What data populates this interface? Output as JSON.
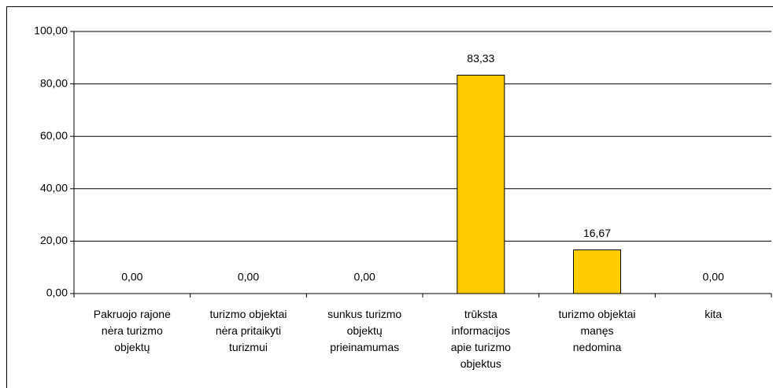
{
  "chart_data": {
    "type": "bar",
    "categories": [
      "Pakruojo rajone\nnėra turizmo\nobjektų",
      "turizmo objektai\nnėra pritaikyti\nturizmui",
      "sunkus turizmo\nobjektų\nprieinamumas",
      "trūksta\ninformacijos\napie turizmo\nobjektus",
      "turizmo objektai\nmanęs\nnedomina",
      "kita"
    ],
    "values": [
      0,
      0,
      0,
      83.33,
      16.67,
      0
    ],
    "value_labels": [
      "0,00",
      "0,00",
      "0,00",
      "83,33",
      "16,67",
      "0,00"
    ],
    "color": "#ffcc00",
    "ylim": [
      0,
      100
    ],
    "yticks": [
      {
        "value": 0,
        "label": "0,00"
      },
      {
        "value": 20,
        "label": "20,00"
      },
      {
        "value": 40,
        "label": "40,00"
      },
      {
        "value": 60,
        "label": "60,00"
      },
      {
        "value": 80,
        "label": "80,00"
      },
      {
        "value": 100,
        "label": "100,00"
      }
    ],
    "grid": true
  }
}
